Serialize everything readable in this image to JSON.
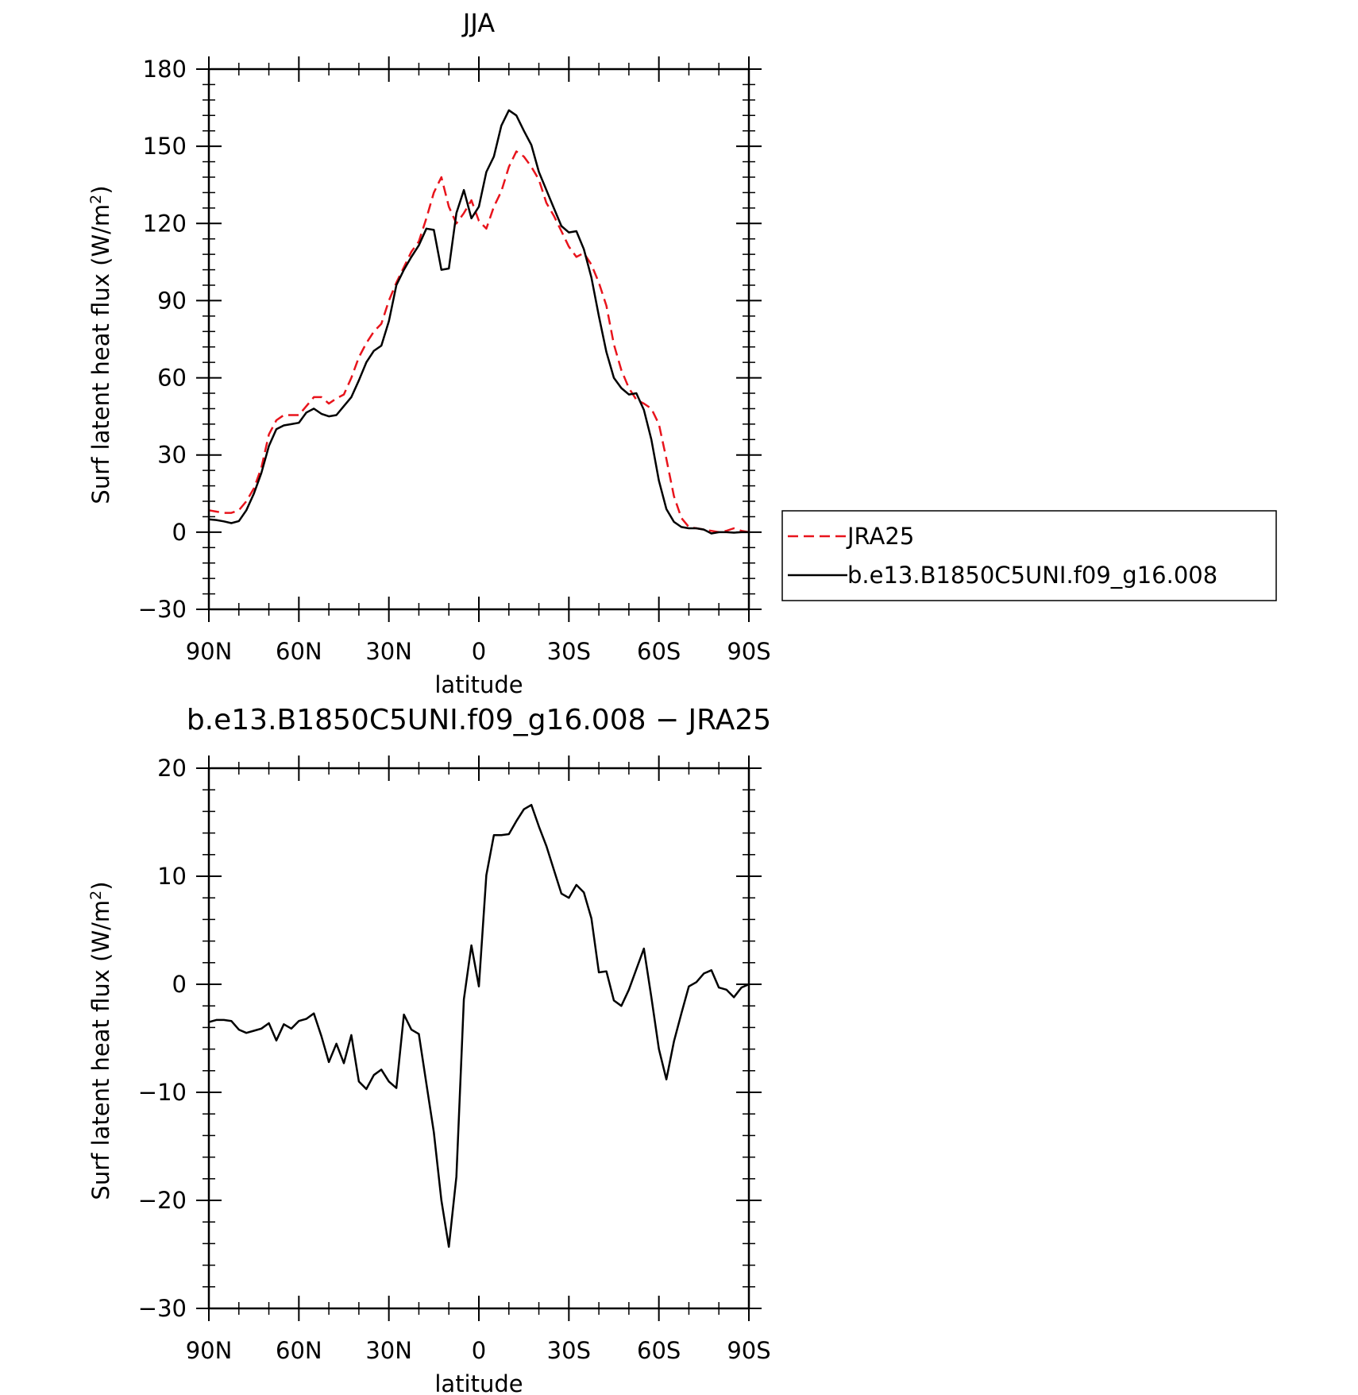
{
  "chart_data": [
    {
      "type": "line",
      "title": "JJA",
      "xlabel": "latitude",
      "ylabel": "Surf latent heat flux (W/m²)",
      "ylabel_main": "Surf latent heat flux (W/m",
      "ylabel_sup": "2",
      "ylabel_close": ")",
      "xlim": [
        90,
        -90
      ],
      "ylim": [
        -30,
        180
      ],
      "xticks": [
        90,
        60,
        30,
        0,
        -30,
        -60,
        -90
      ],
      "xtick_labels": [
        "90N",
        "60N",
        "30N",
        "0",
        "30S",
        "60S",
        "90S"
      ],
      "yticks": [
        -30,
        0,
        30,
        60,
        90,
        120,
        150,
        180
      ],
      "ytick_labels": [
        "−30",
        "0",
        "30",
        "60",
        "90",
        "120",
        "150",
        "180"
      ],
      "legend": {
        "placement": "outside-right",
        "entries": [
          "JRA25",
          "b.e13.B1850C5UNI.f09_g16.008"
        ]
      },
      "series": [
        {
          "name": "JRA25",
          "color": "#e8141c",
          "dash": true,
          "x": [
            90,
            87.5,
            85,
            82.5,
            80,
            77.5,
            75,
            72.5,
            70,
            67.5,
            65,
            62.5,
            60,
            57.5,
            55,
            52.5,
            50,
            47.5,
            45,
            42.5,
            40,
            37.5,
            35,
            32.5,
            30,
            27.5,
            25,
            22.5,
            20,
            17.5,
            15,
            12.5,
            10,
            7.5,
            5,
            2.5,
            0,
            -2.5,
            -5,
            -7.5,
            -10,
            -12.5,
            -15,
            -17.5,
            -20,
            -22.5,
            -25,
            -27.5,
            -30,
            -32.5,
            -35,
            -37.5,
            -40,
            -42.5,
            -45,
            -47.5,
            -50,
            -52.5,
            -55,
            -57.5,
            -60,
            -62.5,
            -65,
            -67.5,
            -70,
            -72.5,
            -75,
            -77.5,
            -80,
            -82.5,
            -85,
            -87.5,
            -90
          ],
          "y": [
            8.5,
            8,
            7.5,
            7.5,
            8.5,
            12,
            17,
            25,
            38,
            43.5,
            45.5,
            45.5,
            45.5,
            49,
            52.5,
            52.5,
            50,
            52,
            53.5,
            60,
            68,
            73.5,
            78,
            81,
            90,
            97,
            103,
            109,
            113,
            122,
            132,
            138,
            126.5,
            120,
            124,
            129,
            121,
            118,
            126.5,
            132.5,
            142,
            148,
            146,
            142,
            137,
            128,
            123,
            117,
            111,
            107,
            108.5,
            104,
            97,
            88,
            73,
            63,
            56,
            51.5,
            50,
            48,
            42,
            28.5,
            14,
            5.5,
            2,
            1.5,
            1,
            0.5,
            0,
            0.5,
            1.5,
            0.5,
            0
          ]
        },
        {
          "name": "b.e13.B1850C5UNI.f09_g16.008",
          "color": "#000000",
          "dash": false,
          "x": [
            90,
            87.5,
            85,
            82.5,
            80,
            77.5,
            75,
            72.5,
            70,
            67.5,
            65,
            62.5,
            60,
            57.5,
            55,
            52.5,
            50,
            47.5,
            45,
            42.5,
            40,
            37.5,
            35,
            32.5,
            30,
            27.5,
            25,
            22.5,
            20,
            17.5,
            15,
            12.5,
            10,
            7.5,
            5,
            2.5,
            0,
            -2.5,
            -5,
            -7.5,
            -10,
            -12.5,
            -15,
            -17.5,
            -20,
            -22.5,
            -25,
            -27.5,
            -30,
            -32.5,
            -35,
            -37.5,
            -40,
            -42.5,
            -45,
            -47.5,
            -50,
            -52.5,
            -55,
            -57.5,
            -60,
            -62.5,
            -65,
            -67.5,
            -70,
            -72.5,
            -75,
            -77.5,
            -80,
            -82.5,
            -85,
            -87.5,
            -90
          ],
          "y": [
            5,
            4.7,
            4.2,
            3.5,
            4.3,
            8.5,
            15,
            23,
            33.5,
            40,
            41.5,
            42,
            42.5,
            46.5,
            48,
            46,
            45,
            45.5,
            49,
            52.5,
            59,
            66,
            70.5,
            72.5,
            82,
            96,
            102,
            107,
            111.5,
            118,
            117.5,
            102,
            102.5,
            124,
            133,
            122,
            126.5,
            140,
            146,
            158,
            164,
            162,
            156,
            150.5,
            140,
            133,
            126,
            119,
            116.5,
            117,
            110,
            99,
            84,
            70,
            60,
            56,
            53.5,
            54,
            47.5,
            36,
            20,
            9,
            4,
            2,
            1.5,
            1.5,
            1,
            -0.5,
            0,
            0,
            -0.2,
            0,
            0
          ]
        }
      ]
    },
    {
      "type": "line",
      "title": "b.e13.B1850C5UNI.f09_g16.008 − JRA25",
      "xlabel": "latitude",
      "ylabel": "Surf latent heat flux (W/m²)",
      "ylabel_main": "Surf latent heat flux (W/m",
      "ylabel_sup": "2",
      "ylabel_close": ")",
      "xlim": [
        90,
        -90
      ],
      "ylim": [
        -30,
        20
      ],
      "xticks": [
        90,
        60,
        30,
        0,
        -30,
        -60,
        -90
      ],
      "xtick_labels": [
        "90N",
        "60N",
        "30N",
        "0",
        "30S",
        "60S",
        "90S"
      ],
      "yticks": [
        -30,
        -20,
        -10,
        0,
        10,
        20
      ],
      "ytick_labels": [
        "−30",
        "−20",
        "−10",
        "0",
        "10",
        "20"
      ],
      "series": [
        {
          "color": "#000000",
          "dash": false,
          "x": [
            90,
            87.5,
            85,
            82.5,
            80,
            77.5,
            75,
            72.5,
            70,
            67.5,
            65,
            62.5,
            60,
            57.5,
            55,
            52.5,
            50,
            47.5,
            45,
            42.5,
            40,
            37.5,
            35,
            32.5,
            30,
            27.5,
            25,
            22.5,
            20,
            17.5,
            15,
            12.5,
            10,
            7.5,
            5,
            2.5,
            0,
            -2.5,
            -5,
            -7.5,
            -10,
            -12.5,
            -15,
            -17.5,
            -20,
            -22.5,
            -25,
            -27.5,
            -30,
            -32.5,
            -35,
            -37.5,
            -40,
            -42.5,
            -45,
            -47.5,
            -50,
            -52.5,
            -55,
            -57.5,
            -60,
            -62.5,
            -65,
            -67.5,
            -70,
            -72.5,
            -75,
            -77.5,
            -80,
            -82.5,
            -85,
            -87.5,
            -90
          ],
          "y": [
            -3.5,
            -3.3,
            -3.3,
            -3.4,
            -4.2,
            -4.5,
            -4.3,
            -4.1,
            -3.6,
            -5.2,
            -3.7,
            -4.1,
            -3.4,
            -3.2,
            -2.7,
            -4.8,
            -7.2,
            -5.5,
            -7.3,
            -4.7,
            -9.0,
            -9.7,
            -8.4,
            -7.9,
            -9.0,
            -9.6,
            -2.8,
            -4.2,
            -4.6,
            -9.2,
            -13.7,
            -20.0,
            -24.3,
            -17.8,
            -1.4,
            3.6,
            -0.2,
            10.1,
            13.8,
            13.8,
            13.9,
            15.1,
            16.2,
            16.6,
            14.6,
            12.8,
            10.6,
            8.4,
            8.0,
            9.2,
            8.5,
            6.1,
            1.1,
            1.2,
            -1.5,
            -2.0,
            -0.5,
            1.4,
            3.3,
            -1.2,
            -6.0,
            -8.8,
            -5.3,
            -2.7,
            -0.2,
            0.2,
            1.0,
            1.3,
            -0.3,
            -0.5,
            -1.2,
            -0.3,
            0
          ]
        }
      ]
    }
  ]
}
